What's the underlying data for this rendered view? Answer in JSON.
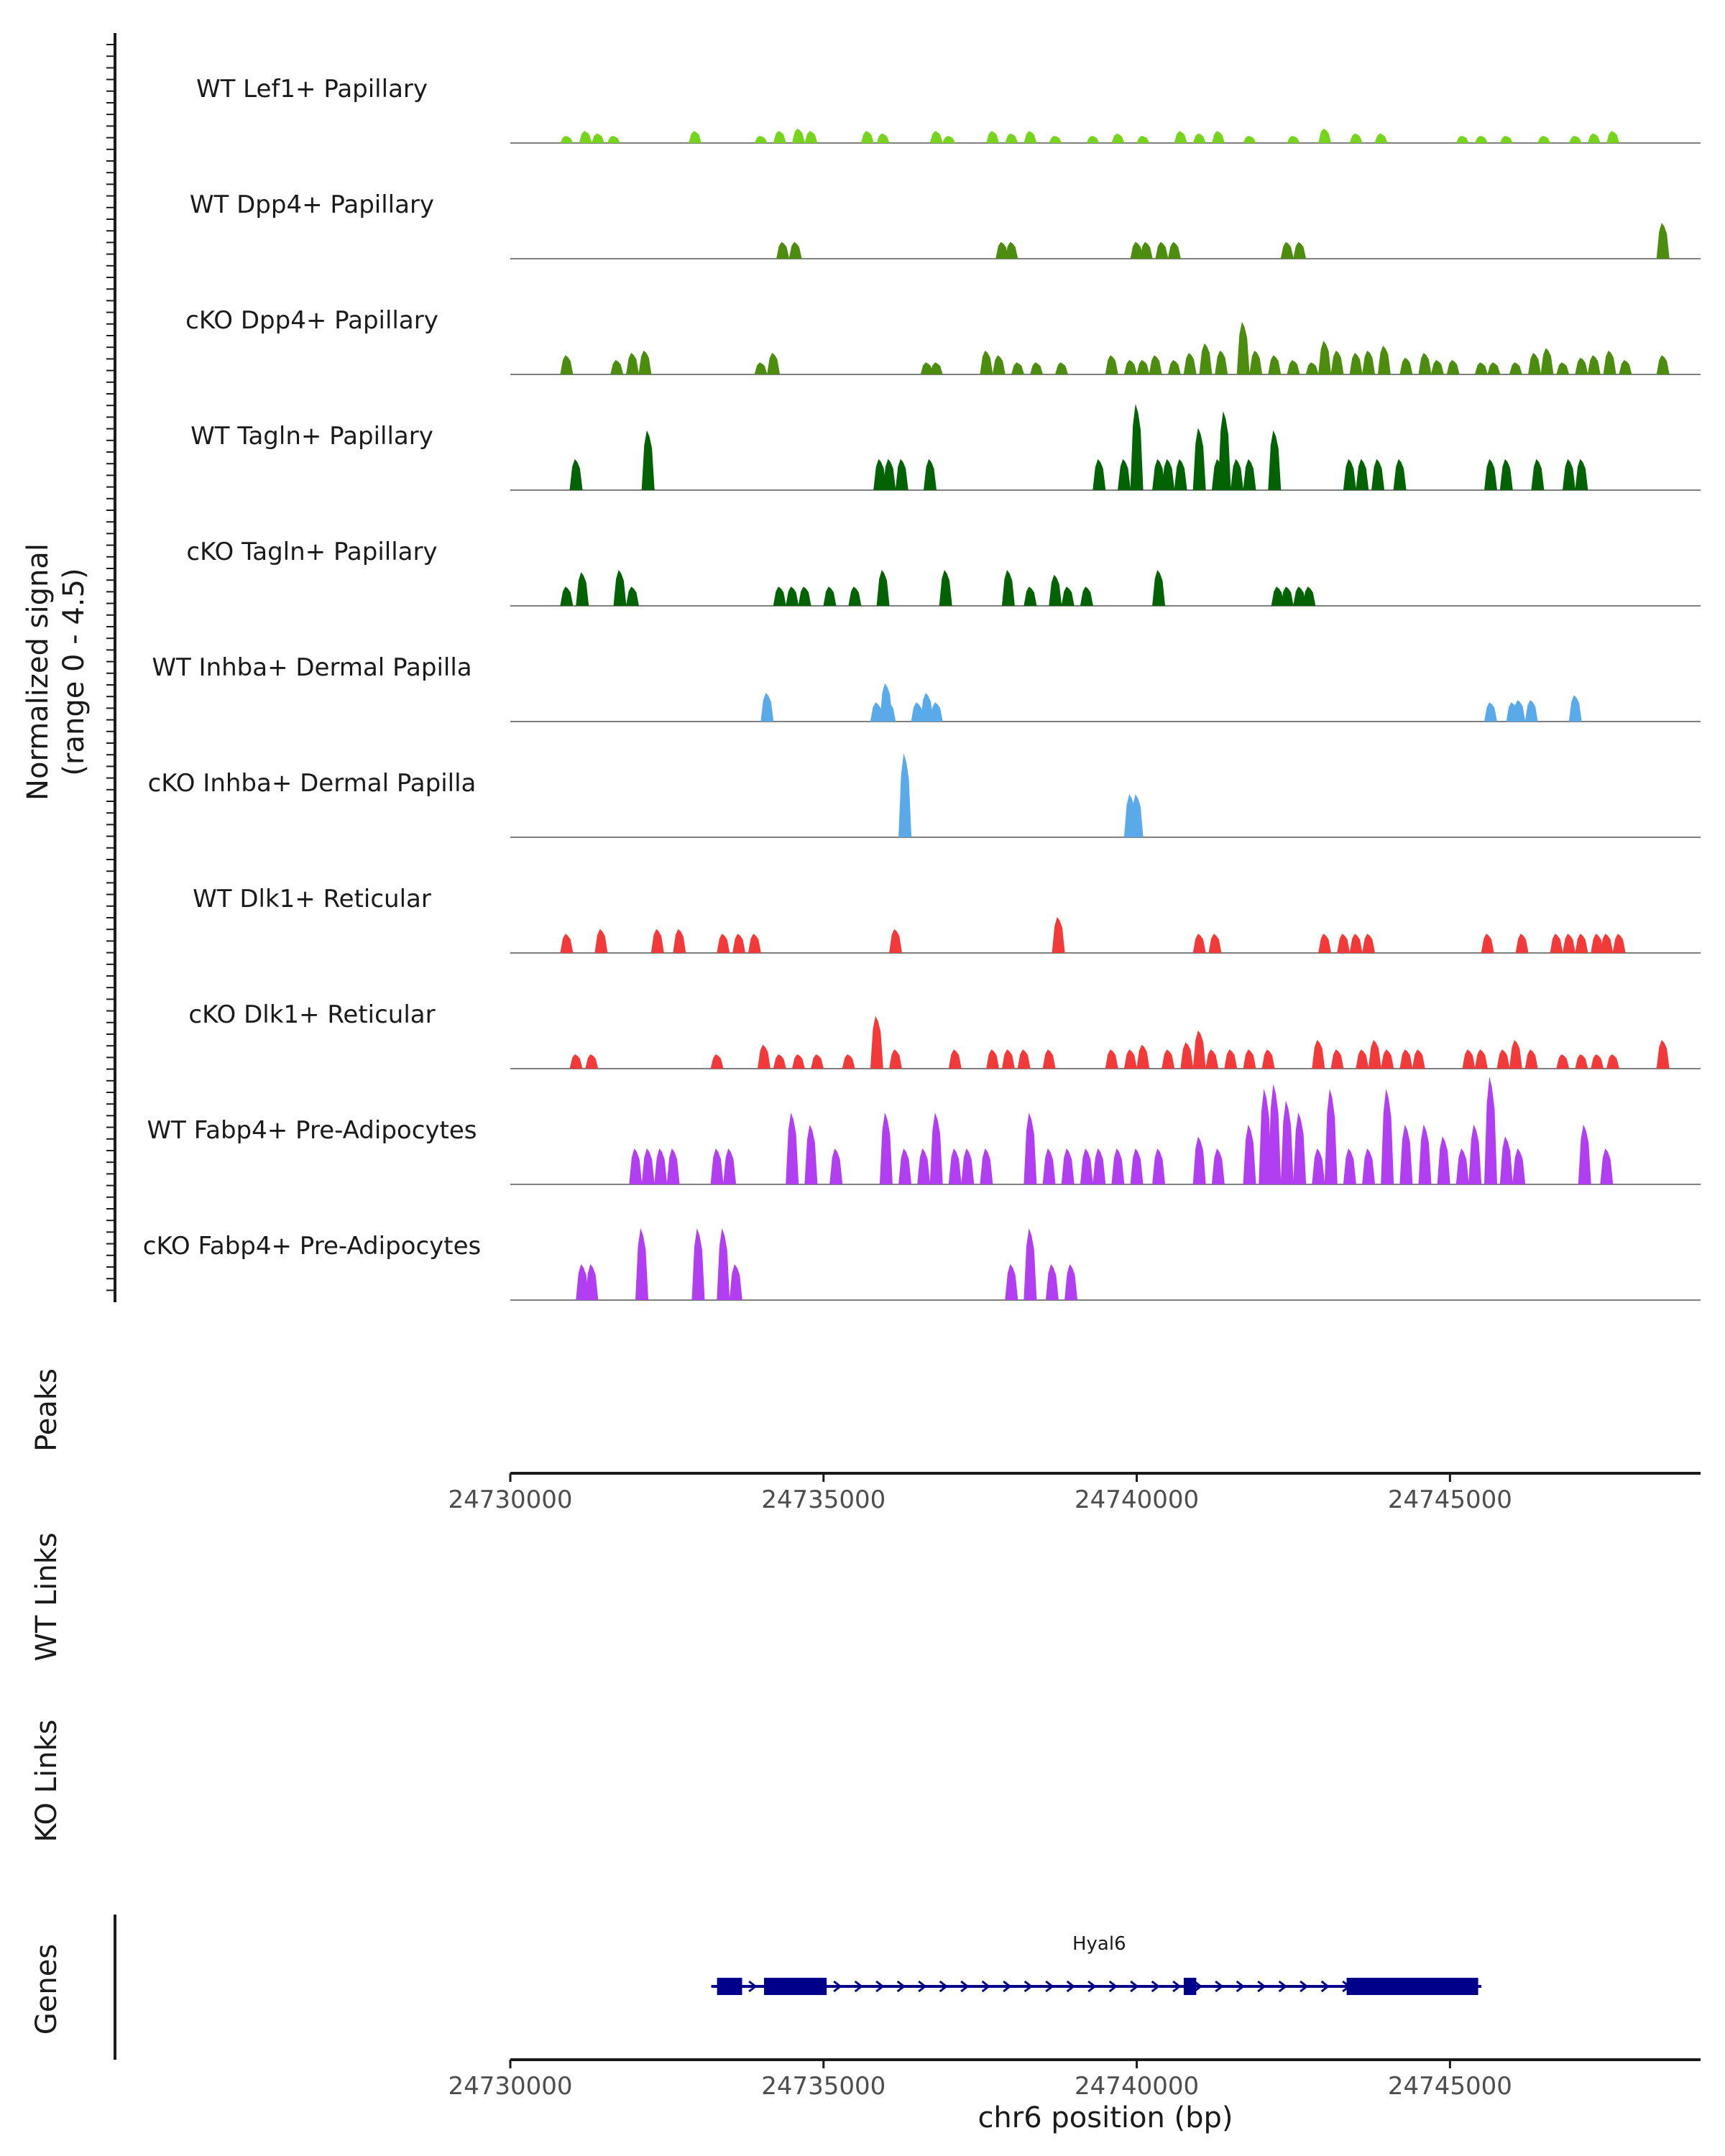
{
  "chart_data": {
    "type": "area",
    "title": "",
    "chromosome": "chr6",
    "xlabel": "chr6 position (bp)",
    "xlim": [
      24730000,
      24749000
    ],
    "x_ticks": [
      "24730000",
      "24735000",
      "24740000",
      "24745000"
    ],
    "x_tick_values": [
      24730000,
      24735000,
      24740000,
      24745000
    ],
    "ylabel_line1": "Normalized signal",
    "ylabel_line2": "(range 0 - 4.5)",
    "ylim": [
      0,
      4.5
    ],
    "tracks": [
      {
        "name": "WT Lef1+ Papillary",
        "color": "#77d41d",
        "peaks": [
          [
            24730900,
            0.3
          ],
          [
            24731200,
            0.5
          ],
          [
            24731400,
            0.4
          ],
          [
            24731650,
            0.3
          ],
          [
            24732950,
            0.5
          ],
          [
            24734000,
            0.3
          ],
          [
            24734300,
            0.5
          ],
          [
            24734600,
            0.6
          ],
          [
            24734800,
            0.5
          ],
          [
            24735700,
            0.5
          ],
          [
            24735950,
            0.4
          ],
          [
            24736800,
            0.5
          ],
          [
            24737000,
            0.3
          ],
          [
            24737700,
            0.5
          ],
          [
            24738000,
            0.4
          ],
          [
            24738300,
            0.5
          ],
          [
            24738700,
            0.3
          ],
          [
            24739300,
            0.3
          ],
          [
            24739700,
            0.4
          ],
          [
            24740100,
            0.3
          ],
          [
            24740700,
            0.5
          ],
          [
            24741000,
            0.4
          ],
          [
            24741300,
            0.5
          ],
          [
            24741800,
            0.3
          ],
          [
            24742500,
            0.3
          ],
          [
            24743000,
            0.6
          ],
          [
            24743500,
            0.4
          ],
          [
            24743900,
            0.4
          ],
          [
            24745200,
            0.3
          ],
          [
            24745500,
            0.3
          ],
          [
            24745900,
            0.3
          ],
          [
            24746500,
            0.3
          ],
          [
            24747000,
            0.3
          ],
          [
            24747300,
            0.4
          ],
          [
            24747600,
            0.5
          ]
        ]
      },
      {
        "name": "WT Dpp4+ Papillary",
        "color": "#4c8c0e",
        "peaks": [
          [
            24734350,
            0.7
          ],
          [
            24734550,
            0.7
          ],
          [
            24737850,
            0.7
          ],
          [
            24738000,
            0.7
          ],
          [
            24740000,
            0.7
          ],
          [
            24740150,
            0.7
          ],
          [
            24740400,
            0.7
          ],
          [
            24740600,
            0.7
          ],
          [
            24742400,
            0.7
          ],
          [
            24742600,
            0.7
          ],
          [
            24748400,
            1.5
          ]
        ]
      },
      {
        "name": "cKO Dpp4+ Papillary",
        "color": "#4c8c0e",
        "peaks": [
          [
            24730900,
            0.8
          ],
          [
            24731700,
            0.6
          ],
          [
            24731950,
            0.9
          ],
          [
            24732150,
            1.0
          ],
          [
            24734000,
            0.5
          ],
          [
            24734200,
            0.9
          ],
          [
            24736650,
            0.5
          ],
          [
            24736800,
            0.5
          ],
          [
            24737600,
            1.0
          ],
          [
            24737800,
            0.8
          ],
          [
            24738100,
            0.5
          ],
          [
            24738400,
            0.5
          ],
          [
            24738800,
            0.5
          ],
          [
            24739600,
            0.8
          ],
          [
            24739900,
            0.6
          ],
          [
            24740100,
            0.6
          ],
          [
            24740300,
            0.8
          ],
          [
            24740600,
            0.6
          ],
          [
            24740850,
            0.9
          ],
          [
            24741100,
            1.3
          ],
          [
            24741350,
            1.0
          ],
          [
            24741700,
            2.2
          ],
          [
            24741900,
            1.0
          ],
          [
            24742200,
            0.8
          ],
          [
            24742500,
            0.6
          ],
          [
            24742800,
            0.5
          ],
          [
            24743000,
            1.4
          ],
          [
            24743200,
            1.0
          ],
          [
            24743500,
            0.9
          ],
          [
            24743700,
            1.0
          ],
          [
            24743950,
            1.2
          ],
          [
            24744300,
            0.7
          ],
          [
            24744600,
            0.9
          ],
          [
            24744800,
            0.6
          ],
          [
            24745050,
            0.6
          ],
          [
            24745500,
            0.5
          ],
          [
            24745700,
            0.5
          ],
          [
            24746050,
            0.5
          ],
          [
            24746350,
            0.9
          ],
          [
            24746550,
            1.1
          ],
          [
            24746800,
            0.5
          ],
          [
            24747100,
            0.7
          ],
          [
            24747300,
            0.8
          ],
          [
            24747550,
            1.0
          ],
          [
            24747800,
            0.6
          ],
          [
            24748400,
            0.8
          ]
        ]
      },
      {
        "name": "WT Tagln+ Papillary",
        "color": "#036203",
        "peaks": [
          [
            24731050,
            1.3
          ],
          [
            24732200,
            2.5
          ],
          [
            24735900,
            1.3
          ],
          [
            24736050,
            1.3
          ],
          [
            24736250,
            1.3
          ],
          [
            24736700,
            1.3
          ],
          [
            24739400,
            1.3
          ],
          [
            24739800,
            1.3
          ],
          [
            24740000,
            3.6
          ],
          [
            24740350,
            1.3
          ],
          [
            24740500,
            1.3
          ],
          [
            24740700,
            1.3
          ],
          [
            24741000,
            2.6
          ],
          [
            24741300,
            1.3
          ],
          [
            24741400,
            3.3
          ],
          [
            24741600,
            1.3
          ],
          [
            24741800,
            1.3
          ],
          [
            24742200,
            2.5
          ],
          [
            24743400,
            1.3
          ],
          [
            24743600,
            1.3
          ],
          [
            24743850,
            1.3
          ],
          [
            24744200,
            1.3
          ],
          [
            24745650,
            1.3
          ],
          [
            24745900,
            1.3
          ],
          [
            24746400,
            1.3
          ],
          [
            24746900,
            1.3
          ],
          [
            24747100,
            1.3
          ]
        ]
      },
      {
        "name": "cKO Tagln+ Papillary",
        "color": "#036203",
        "peaks": [
          [
            24730900,
            0.8
          ],
          [
            24731150,
            1.4
          ],
          [
            24731750,
            1.5
          ],
          [
            24731950,
            0.8
          ],
          [
            24734300,
            0.8
          ],
          [
            24734500,
            0.8
          ],
          [
            24734700,
            0.8
          ],
          [
            24735100,
            0.8
          ],
          [
            24735500,
            0.8
          ],
          [
            24735950,
            1.5
          ],
          [
            24736950,
            1.5
          ],
          [
            24737950,
            1.5
          ],
          [
            24738300,
            0.8
          ],
          [
            24738700,
            1.3
          ],
          [
            24738900,
            0.8
          ],
          [
            24739200,
            0.8
          ],
          [
            24740350,
            1.5
          ],
          [
            24742250,
            0.8
          ],
          [
            24742400,
            0.8
          ],
          [
            24742600,
            0.8
          ],
          [
            24742750,
            0.8
          ]
        ]
      },
      {
        "name": "WT Inhba+ Dermal Papilla",
        "color": "#5aa9e8",
        "peaks": [
          [
            24734100,
            1.2
          ],
          [
            24735850,
            0.8
          ],
          [
            24736000,
            1.6
          ],
          [
            24736050,
            0.8
          ],
          [
            24736500,
            0.8
          ],
          [
            24736650,
            1.2
          ],
          [
            24736800,
            0.8
          ],
          [
            24745650,
            0.8
          ],
          [
            24746000,
            0.8
          ],
          [
            24746100,
            0.9
          ],
          [
            24746300,
            0.9
          ],
          [
            24747000,
            1.1
          ]
        ]
      },
      {
        "name": "cKO Inhba+ Dermal Papilla",
        "color": "#5aa9e8",
        "peaks": [
          [
            24736300,
            3.5
          ],
          [
            24739900,
            1.8
          ],
          [
            24740000,
            1.8
          ]
        ]
      },
      {
        "name": "WT Dlk1+ Reticular",
        "color": "#f23a3a",
        "peaks": [
          [
            24730900,
            0.8
          ],
          [
            24731450,
            1.0
          ],
          [
            24732350,
            1.0
          ],
          [
            24732700,
            1.0
          ],
          [
            24733400,
            0.8
          ],
          [
            24733650,
            0.8
          ],
          [
            24733900,
            0.8
          ],
          [
            24736150,
            1.0
          ],
          [
            24738750,
            1.5
          ],
          [
            24741000,
            0.8
          ],
          [
            24741250,
            0.8
          ],
          [
            24743000,
            0.8
          ],
          [
            24743300,
            0.8
          ],
          [
            24743500,
            0.8
          ],
          [
            24743700,
            0.8
          ],
          [
            24745600,
            0.8
          ],
          [
            24746150,
            0.8
          ],
          [
            24746700,
            0.8
          ],
          [
            24746900,
            0.8
          ],
          [
            24747100,
            0.8
          ],
          [
            24747350,
            0.8
          ],
          [
            24747500,
            0.8
          ],
          [
            24747700,
            0.8
          ]
        ]
      },
      {
        "name": "cKO Dlk1+ Reticular",
        "color": "#f23a3a",
        "peaks": [
          [
            24731050,
            0.6
          ],
          [
            24731300,
            0.6
          ],
          [
            24733300,
            0.6
          ],
          [
            24734050,
            1.0
          ],
          [
            24734300,
            0.6
          ],
          [
            24734600,
            0.6
          ],
          [
            24734900,
            0.6
          ],
          [
            24735400,
            0.6
          ],
          [
            24735850,
            2.2
          ],
          [
            24736150,
            0.8
          ],
          [
            24737100,
            0.8
          ],
          [
            24737700,
            0.8
          ],
          [
            24737950,
            0.8
          ],
          [
            24738200,
            0.8
          ],
          [
            24738600,
            0.8
          ],
          [
            24739600,
            0.8
          ],
          [
            24739900,
            0.8
          ],
          [
            24740100,
            1.0
          ],
          [
            24740500,
            0.8
          ],
          [
            24740800,
            1.1
          ],
          [
            24741000,
            1.6
          ],
          [
            24741200,
            0.8
          ],
          [
            24741500,
            0.8
          ],
          [
            24741800,
            0.8
          ],
          [
            24742100,
            0.8
          ],
          [
            24742900,
            1.2
          ],
          [
            24743200,
            0.8
          ],
          [
            24743600,
            0.8
          ],
          [
            24743800,
            1.2
          ],
          [
            24744000,
            0.8
          ],
          [
            24744300,
            0.8
          ],
          [
            24744500,
            0.8
          ],
          [
            24745300,
            0.8
          ],
          [
            24745500,
            0.8
          ],
          [
            24745850,
            0.8
          ],
          [
            24746050,
            1.2
          ],
          [
            24746300,
            0.8
          ],
          [
            24746800,
            0.6
          ],
          [
            24747100,
            0.6
          ],
          [
            24747350,
            0.6
          ],
          [
            24747600,
            0.6
          ],
          [
            24748400,
            1.2
          ]
        ]
      },
      {
        "name": "WT Fabp4+ Pre-Adipocytes",
        "color": "#b13ef0",
        "peaks": [
          [
            24732000,
            1.5
          ],
          [
            24732200,
            1.5
          ],
          [
            24732400,
            1.5
          ],
          [
            24732600,
            1.5
          ],
          [
            24733300,
            1.5
          ],
          [
            24733500,
            1.5
          ],
          [
            24734500,
            3.0
          ],
          [
            24734800,
            2.5
          ],
          [
            24735200,
            1.5
          ],
          [
            24736000,
            3.0
          ],
          [
            24736300,
            1.5
          ],
          [
            24736600,
            1.5
          ],
          [
            24736800,
            3.0
          ],
          [
            24737100,
            1.5
          ],
          [
            24737300,
            1.5
          ],
          [
            24737600,
            1.5
          ],
          [
            24738300,
            3.0
          ],
          [
            24738600,
            1.5
          ],
          [
            24738900,
            1.5
          ],
          [
            24739200,
            1.5
          ],
          [
            24739400,
            1.5
          ],
          [
            24739700,
            1.5
          ],
          [
            24740000,
            1.5
          ],
          [
            24740350,
            1.5
          ],
          [
            24741000,
            2.0
          ],
          [
            24741300,
            1.5
          ],
          [
            24741800,
            2.5
          ],
          [
            24742050,
            4.0
          ],
          [
            24742200,
            4.2
          ],
          [
            24742400,
            3.5
          ],
          [
            24742600,
            3.0
          ],
          [
            24742900,
            1.5
          ],
          [
            24743100,
            4.0
          ],
          [
            24743400,
            1.5
          ],
          [
            24743700,
            1.5
          ],
          [
            24744000,
            4.0
          ],
          [
            24744300,
            2.5
          ],
          [
            24744600,
            2.5
          ],
          [
            24744900,
            2.0
          ],
          [
            24745200,
            1.5
          ],
          [
            24745400,
            2.5
          ],
          [
            24745650,
            4.5
          ],
          [
            24745900,
            2.0
          ],
          [
            24746100,
            1.5
          ],
          [
            24747150,
            2.5
          ],
          [
            24747500,
            1.5
          ]
        ]
      },
      {
        "name": "cKO Fabp4+ Pre-Adipocytes",
        "color": "#b13ef0",
        "peaks": [
          [
            24731150,
            1.5
          ],
          [
            24731300,
            1.5
          ],
          [
            24732100,
            3.0
          ],
          [
            24733000,
            3.0
          ],
          [
            24733400,
            3.0
          ],
          [
            24733600,
            1.5
          ],
          [
            24738000,
            1.5
          ],
          [
            24738300,
            3.0
          ],
          [
            24738650,
            1.5
          ],
          [
            24738950,
            1.5
          ]
        ]
      }
    ],
    "lower_track_labels": {
      "peaks": "Peaks",
      "wt_links": "WT Links",
      "ko_links": "KO Links",
      "genes": "Genes"
    },
    "gene": {
      "name": "Hyal6",
      "start": 24733300,
      "end": 24745500,
      "strand": "+",
      "color": "#00008b",
      "exons": [
        [
          24733300,
          24733700
        ],
        [
          24734050,
          24735050
        ],
        [
          24740750,
          24740950
        ],
        [
          24743350,
          24745450
        ]
      ]
    }
  }
}
